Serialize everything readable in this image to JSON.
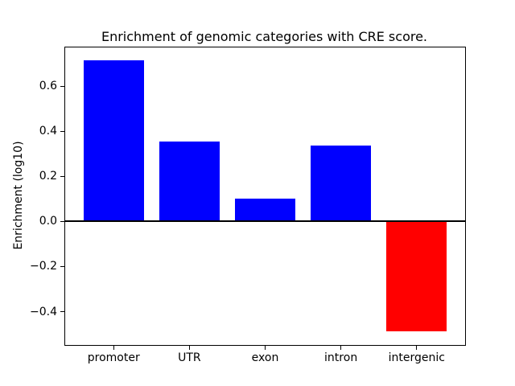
{
  "chart_data": {
    "type": "bar",
    "title": "Enrichment of genomic categories with CRE score.",
    "xlabel": "",
    "ylabel": "Enrichment (log10)",
    "categories": [
      "promoter",
      "UTR",
      "exon",
      "intron",
      "intergenic"
    ],
    "values": [
      0.715,
      0.355,
      0.1,
      0.335,
      -0.487
    ],
    "bar_colors": [
      "#0000ff",
      "#0000ff",
      "#0000ff",
      "#0000ff",
      "#ff0000"
    ],
    "positive_color": "#0000ff",
    "negative_color": "#ff0000",
    "bar_width_units": 0.8,
    "xlim": [
      -0.64,
      4.64
    ],
    "ylim": [
      -0.548,
      0.772
    ],
    "yticks": {
      "values": [
        0.6,
        0.4,
        0.2,
        0.0,
        -0.2,
        -0.4
      ],
      "labels": [
        "0.6",
        "0.4",
        "0.2",
        "0.0",
        "−0.2",
        "−0.4"
      ]
    },
    "zero_line": true,
    "grid": false,
    "legend": null,
    "axis_color": "#000000",
    "background_color": "#ffffff"
  }
}
